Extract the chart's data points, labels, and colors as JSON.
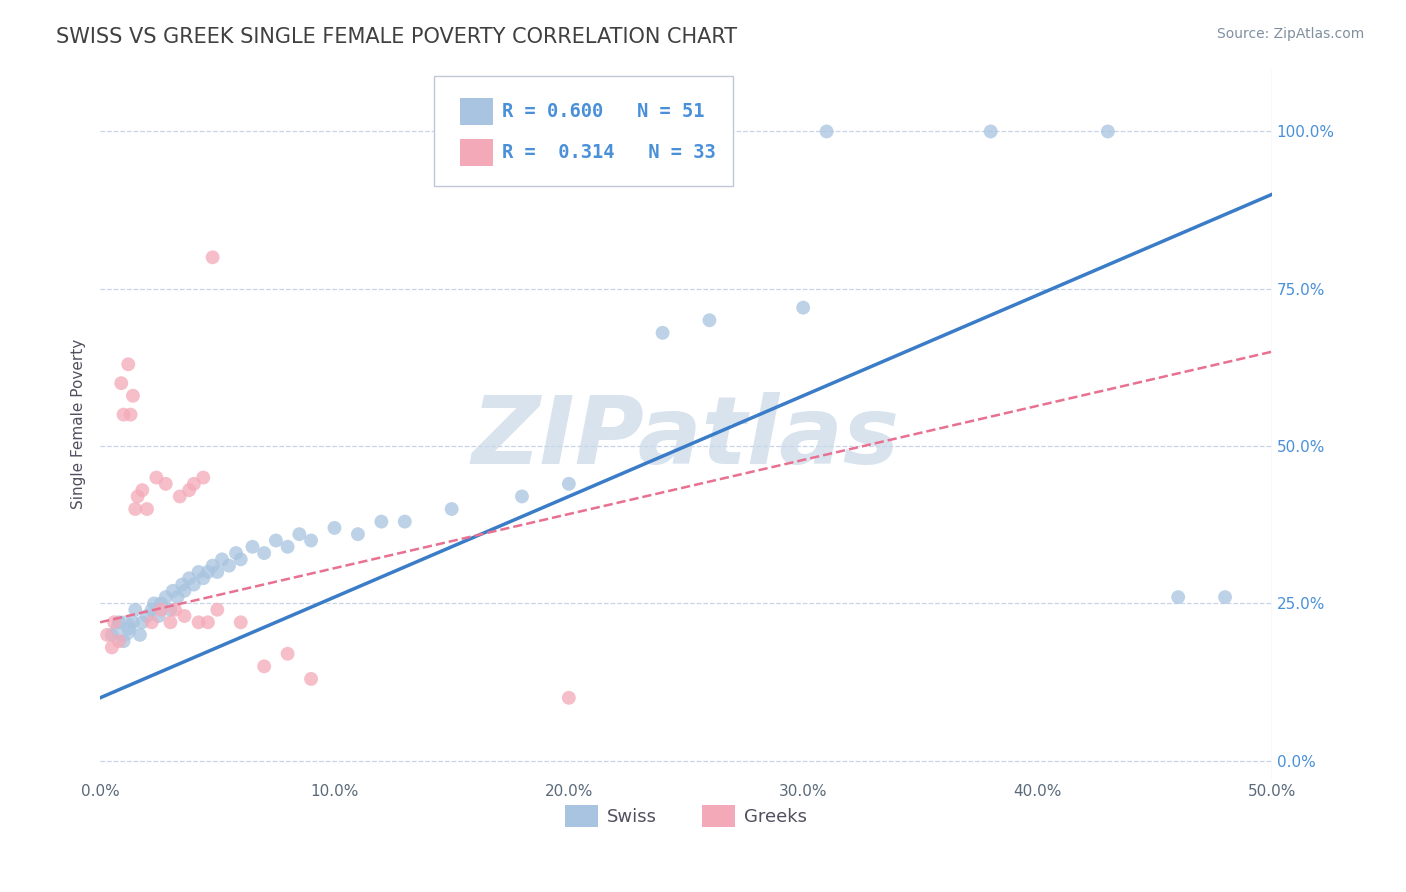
{
  "title": "SWISS VS GREEK SINGLE FEMALE POVERTY CORRELATION CHART",
  "source": "Source: ZipAtlas.com",
  "ylabel": "Single Female Poverty",
  "xlim": [
    0.0,
    0.5
  ],
  "ylim": [
    -0.03,
    1.1
  ],
  "xtick_labels": [
    "0.0%",
    "",
    "",
    "",
    "",
    "",
    "",
    "",
    "",
    "",
    "10.0%",
    "",
    "",
    "",
    "",
    "",
    "",
    "",
    "",
    "",
    "20.0%",
    "",
    "",
    "",
    "",
    "",
    "",
    "",
    "",
    "",
    "30.0%",
    "",
    "",
    "",
    "",
    "",
    "",
    "",
    "",
    "",
    "40.0%",
    "",
    "",
    "",
    "",
    "",
    "",
    "",
    "",
    "",
    "50.0%"
  ],
  "ytick_labels": [
    "0.0%",
    "25.0%",
    "50.0%",
    "75.0%",
    "100.0%"
  ],
  "ytick_values": [
    0.0,
    0.25,
    0.5,
    0.75,
    1.0
  ],
  "xtick_values": [
    0.0,
    0.01,
    0.02,
    0.03,
    0.04,
    0.05,
    0.06,
    0.07,
    0.08,
    0.09,
    0.1,
    0.11,
    0.12,
    0.13,
    0.14,
    0.15,
    0.16,
    0.17,
    0.18,
    0.19,
    0.2,
    0.21,
    0.22,
    0.23,
    0.24,
    0.25,
    0.26,
    0.27,
    0.28,
    0.29,
    0.3,
    0.31,
    0.32,
    0.33,
    0.34,
    0.35,
    0.36,
    0.37,
    0.38,
    0.39,
    0.4,
    0.41,
    0.42,
    0.43,
    0.44,
    0.45,
    0.46,
    0.47,
    0.48,
    0.49,
    0.5
  ],
  "swiss_color": "#a8c4e0",
  "greek_color": "#f4a9b8",
  "swiss_line_color": "#3a7cc7",
  "greek_line_color": "#e87090",
  "watermark_color": "#c8d8e8",
  "title_color": "#404040",
  "legend_text_color": "#4a90d9",
  "R_swiss": 0.6,
  "N_swiss": 51,
  "R_greek": 0.314,
  "N_greek": 33,
  "swiss_scatter": [
    [
      0.005,
      0.2
    ],
    [
      0.008,
      0.22
    ],
    [
      0.01,
      0.19
    ],
    [
      0.012,
      0.21
    ],
    [
      0.014,
      0.22
    ],
    [
      0.015,
      0.24
    ],
    [
      0.017,
      0.2
    ],
    [
      0.018,
      0.22
    ],
    [
      0.02,
      0.23
    ],
    [
      0.022,
      0.24
    ],
    [
      0.023,
      0.25
    ],
    [
      0.025,
      0.23
    ],
    [
      0.026,
      0.25
    ],
    [
      0.028,
      0.26
    ],
    [
      0.03,
      0.24
    ],
    [
      0.031,
      0.27
    ],
    [
      0.033,
      0.26
    ],
    [
      0.035,
      0.28
    ],
    [
      0.036,
      0.27
    ],
    [
      0.038,
      0.29
    ],
    [
      0.04,
      0.28
    ],
    [
      0.042,
      0.3
    ],
    [
      0.044,
      0.29
    ],
    [
      0.046,
      0.3
    ],
    [
      0.048,
      0.31
    ],
    [
      0.05,
      0.3
    ],
    [
      0.052,
      0.32
    ],
    [
      0.055,
      0.31
    ],
    [
      0.058,
      0.33
    ],
    [
      0.06,
      0.32
    ],
    [
      0.065,
      0.34
    ],
    [
      0.07,
      0.33
    ],
    [
      0.075,
      0.35
    ],
    [
      0.08,
      0.34
    ],
    [
      0.085,
      0.36
    ],
    [
      0.09,
      0.35
    ],
    [
      0.1,
      0.37
    ],
    [
      0.11,
      0.36
    ],
    [
      0.12,
      0.38
    ],
    [
      0.13,
      0.38
    ],
    [
      0.15,
      0.4
    ],
    [
      0.18,
      0.42
    ],
    [
      0.2,
      0.44
    ],
    [
      0.24,
      0.68
    ],
    [
      0.26,
      0.7
    ],
    [
      0.3,
      0.72
    ],
    [
      0.31,
      1.0
    ],
    [
      0.38,
      1.0
    ],
    [
      0.43,
      1.0
    ],
    [
      0.46,
      0.26
    ],
    [
      0.48,
      0.26
    ]
  ],
  "greek_scatter": [
    [
      0.003,
      0.2
    ],
    [
      0.005,
      0.18
    ],
    [
      0.006,
      0.22
    ],
    [
      0.008,
      0.19
    ],
    [
      0.009,
      0.6
    ],
    [
      0.01,
      0.55
    ],
    [
      0.012,
      0.63
    ],
    [
      0.013,
      0.55
    ],
    [
      0.014,
      0.58
    ],
    [
      0.015,
      0.4
    ],
    [
      0.016,
      0.42
    ],
    [
      0.018,
      0.43
    ],
    [
      0.02,
      0.4
    ],
    [
      0.022,
      0.22
    ],
    [
      0.024,
      0.45
    ],
    [
      0.026,
      0.24
    ],
    [
      0.028,
      0.44
    ],
    [
      0.03,
      0.22
    ],
    [
      0.032,
      0.24
    ],
    [
      0.034,
      0.42
    ],
    [
      0.036,
      0.23
    ],
    [
      0.038,
      0.43
    ],
    [
      0.04,
      0.44
    ],
    [
      0.042,
      0.22
    ],
    [
      0.044,
      0.45
    ],
    [
      0.046,
      0.22
    ],
    [
      0.048,
      0.8
    ],
    [
      0.05,
      0.24
    ],
    [
      0.06,
      0.22
    ],
    [
      0.07,
      0.15
    ],
    [
      0.08,
      0.17
    ],
    [
      0.09,
      0.13
    ],
    [
      0.2,
      0.1
    ]
  ],
  "swiss_line_x": [
    0.0,
    0.5
  ],
  "swiss_line_y": [
    0.1,
    0.9
  ],
  "greek_line_x": [
    0.0,
    0.5
  ],
  "greek_line_y": [
    0.22,
    0.65
  ],
  "background_color": "#ffffff",
  "grid_color": "#c8d4e8",
  "ytick_right": true
}
